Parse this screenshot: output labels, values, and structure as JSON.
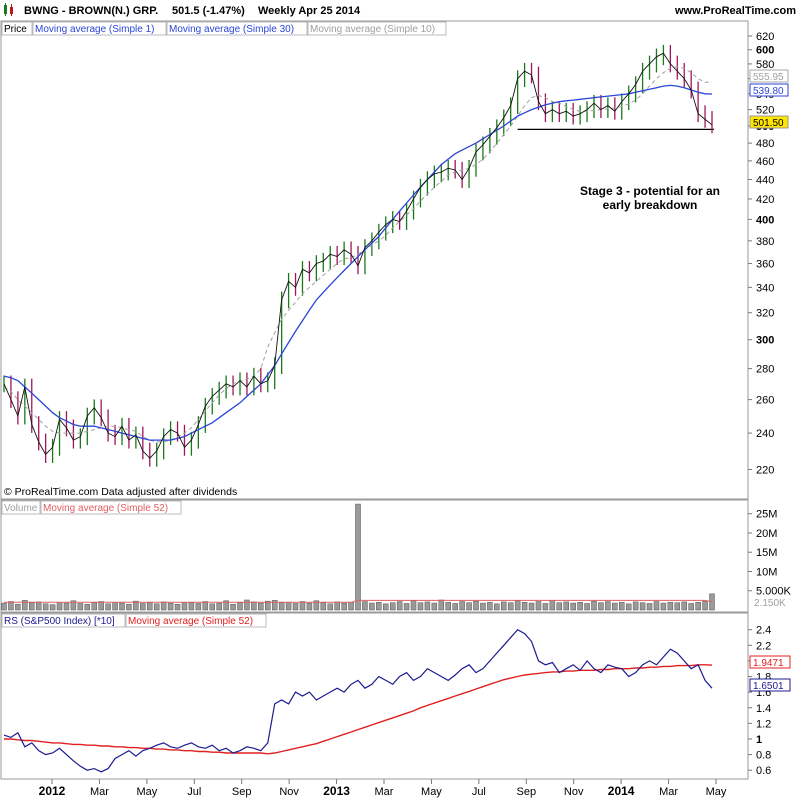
{
  "header": {
    "symbol": "BWNG - BROWN(N.) GRP.",
    "price_change": "501.5 (-1.47%)",
    "period_date": "Weekly  Apr 25 2014",
    "site": "www.ProRealTime.com"
  },
  "price_panel": {
    "legend": [
      "Price",
      "Moving average (Simple 1)",
      "Moving average (Simple 30)",
      "Moving average (Simple 10)"
    ],
    "copyright": "© ProRealTime.com  Data adjusted after dividends",
    "annotation": [
      "Stage 3 - potential for an",
      "early breakdown"
    ],
    "badges": [
      "555.95",
      "539.80",
      "501.50"
    ]
  },
  "volume_panel": {
    "legend": [
      "Volume",
      "Moving average (Simple 52)"
    ],
    "ticks": [
      "25M",
      "20M",
      "15M",
      "10M",
      "5.000K"
    ],
    "badge": "2.150K"
  },
  "rs_panel": {
    "legend": [
      "RS (S&P500 Index) [*10]",
      "Moving average (Simple 52)"
    ],
    "badges": [
      "1.9471",
      "1.6501"
    ]
  },
  "colors": {
    "up_candle": "#1a7a1a",
    "down_candle": "#a0155a",
    "ma30": "#2a46d8",
    "ma10": "#a0a0a0",
    "rs_line": "#1b1b8f",
    "rs_ma": "#e02020",
    "badge_fill": "#ffe600"
  },
  "chart_data": [
    {
      "type": "line",
      "title": "BWNG - BROWN(N.) GRP.",
      "y_scale": "log",
      "ylim": [
        206,
        632
      ],
      "x_ticks": [
        "2012",
        "Mar",
        "May",
        "Jul",
        "Sep",
        "Nov",
        "2013",
        "Mar",
        "May",
        "Jul",
        "Sep",
        "Nov",
        "2014",
        "Mar",
        "May"
      ],
      "y_ticks": [
        220,
        240,
        260,
        280,
        300,
        320,
        340,
        360,
        380,
        400,
        420,
        440,
        460,
        480,
        500,
        520,
        540,
        560,
        580,
        600,
        620
      ],
      "horizontal_line": 496,
      "series": [
        {
          "name": "Moving average (Simple 1)",
          "values": [
            270,
            260,
            250,
            268,
            245,
            235,
            228,
            232,
            248,
            243,
            236,
            238,
            250,
            255,
            249,
            240,
            238,
            244,
            236,
            239,
            230,
            226,
            230,
            238,
            242,
            240,
            232,
            236,
            245,
            256,
            262,
            266,
            270,
            268,
            272,
            268,
            275,
            270,
            272,
            282,
            330,
            345,
            340,
            355,
            352,
            360,
            362,
            368,
            366,
            372,
            368,
            358,
            374,
            380,
            388,
            395,
            400,
            398,
            408,
            420,
            432,
            440,
            446,
            448,
            452,
            450,
            440,
            452,
            470,
            478,
            488,
            498,
            510,
            525,
            560,
            570,
            565,
            530,
            515,
            520,
            515,
            518,
            512,
            515,
            520,
            528,
            520,
            525,
            518,
            530,
            540,
            552,
            570,
            580,
            590,
            595,
            580,
            570,
            560,
            545,
            515,
            508,
            501.5
          ]
        },
        {
          "name": "Moving average (Simple 30)",
          "values": [
            275,
            274,
            272,
            268,
            264,
            260,
            256,
            252,
            249,
            247,
            245,
            244,
            244,
            244,
            243,
            242,
            241,
            240,
            239,
            238,
            237,
            236,
            236,
            236,
            236,
            237,
            238,
            240,
            242,
            244,
            246,
            249,
            252,
            255,
            258,
            262,
            266,
            270,
            276,
            282,
            290,
            298,
            306,
            314,
            322,
            330,
            336,
            342,
            348,
            354,
            360,
            366,
            372,
            378,
            384,
            392,
            400,
            408,
            416,
            424,
            432,
            440,
            448,
            456,
            462,
            468,
            472,
            476,
            480,
            485,
            490,
            495,
            500,
            506,
            512,
            516,
            520,
            523,
            526,
            528,
            530,
            531,
            532,
            533,
            534,
            535,
            536,
            537,
            538,
            539,
            540,
            542,
            544,
            546,
            548,
            550,
            551,
            550,
            548,
            545,
            542,
            540,
            539.8
          ]
        },
        {
          "name": "Moving average (Simple 10)",
          "values": [
            268,
            265,
            260,
            256,
            252,
            248,
            244,
            241,
            240,
            240,
            240,
            240,
            241,
            242,
            243,
            244,
            244,
            243,
            242,
            241,
            238,
            236,
            235,
            235,
            236,
            238,
            240,
            243,
            248,
            253,
            258,
            263,
            267,
            270,
            272,
            273,
            275,
            280,
            295,
            305,
            315,
            322,
            328,
            335,
            340,
            345,
            350,
            355,
            360,
            364,
            365,
            368,
            372,
            376,
            380,
            385,
            392,
            398,
            404,
            410,
            418,
            425,
            432,
            438,
            445,
            448,
            450,
            452,
            456,
            462,
            470,
            480,
            490,
            500,
            512,
            525,
            535,
            538,
            535,
            530,
            528,
            524,
            520,
            518,
            518,
            519,
            520,
            521,
            522,
            524,
            527,
            532,
            540,
            550,
            560,
            568,
            574,
            576,
            574,
            568,
            560,
            555,
            555.95
          ]
        }
      ]
    },
    {
      "type": "bar",
      "title": "Volume",
      "ylim": [
        0,
        27000000
      ],
      "y_ticks": [
        "25M",
        "20M",
        "15M",
        "10M",
        "5.000K"
      ],
      "series": [
        {
          "name": "Volume",
          "values": [
            1800000.0,
            2200000.0,
            1500000.0,
            2500000.0,
            1900000.0,
            2100000.0,
            1600000.0,
            1400000.0,
            2000000.0,
            1800000.0,
            2400000.0,
            1700000.0,
            1500000.0,
            1900000.0,
            2200000.0,
            1600000.0,
            2000000.0,
            1800000.0,
            1500000.0,
            2300000.0,
            1700000.0,
            1900000.0,
            1600000.0,
            2100000.0,
            1800000.0,
            1500000.0,
            2000000.0,
            1900000.0,
            1700000.0,
            2200000.0,
            1600000.0,
            1800000.0,
            2400000.0,
            1500000.0,
            1900000.0,
            2600000.0,
            2100000.0,
            1800000.0,
            2300000.0,
            2500000.0,
            1900000.0,
            2000000.0,
            1700000.0,
            2200000.0,
            1800000.0,
            2400000.0,
            1900000.0,
            1600000.0,
            2100000.0,
            1800000.0,
            2000000.0,
            27500000.0,
            2200000.0,
            1800000.0,
            2000000.0,
            1600000.0,
            1900000.0,
            2200000.0,
            1700000.0,
            2400000.0,
            1900000.0,
            2100000.0,
            1800000.0,
            2600000.0,
            2000000.0,
            1700000.0,
            2200000.0,
            1900000.0,
            2300000.0,
            1800000.0,
            2000000.0,
            1600000.0,
            2100000.0,
            1900000.0,
            2400000.0,
            2000000.0,
            1800000.0,
            2200000.0,
            1700000.0,
            2500000.0,
            1900000.0,
            2100000.0,
            1800000.0,
            2000000.0,
            1700000.0,
            2300000.0,
            1900000.0,
            2200000.0,
            1800000.0,
            2000000.0,
            1600000.0,
            2100000.0,
            1900000.0,
            1700000.0,
            2200000.0,
            1800000.0,
            2000000.0,
            1900000.0,
            2100000.0,
            1700000.0,
            2000000.0,
            2300000.0,
            4200000.0
          ]
        },
        {
          "name": "Moving average (Simple 52)",
          "values": [
            2000000.0,
            2000000.0,
            2000000.0,
            2000000.0,
            2000000.0,
            2000000.0,
            2000000.0,
            2000000.0,
            2000000.0,
            2000000.0,
            2000000.0,
            2000000.0,
            2000000.0,
            2000000.0,
            2000000.0,
            2000000.0,
            2000000.0,
            2000000.0,
            2000000.0,
            2000000.0,
            2000000.0,
            2000000.0,
            2000000.0,
            2000000.0,
            2000000.0,
            2000000.0,
            2000000.0,
            2000000.0,
            2000000.0,
            2000000.0,
            2000000.0,
            2000000.0,
            2000000.0,
            2000000.0,
            2000000.0,
            2000000.0,
            2000000.0,
            2000000.0,
            2000000.0,
            2000000.0,
            2000000.0,
            2000000.0,
            2000000.0,
            2000000.0,
            2000000.0,
            2000000.0,
            2000000.0,
            2000000.0,
            2000000.0,
            2000000.0,
            2000000.0,
            2500000.0,
            2500000.0,
            2500000.0,
            2500000.0,
            2500000.0,
            2500000.0,
            2500000.0,
            2500000.0,
            2500000.0,
            2500000.0,
            2500000.0,
            2500000.0,
            2500000.0,
            2500000.0,
            2500000.0,
            2500000.0,
            2500000.0,
            2500000.0,
            2500000.0,
            2500000.0,
            2500000.0,
            2500000.0,
            2500000.0,
            2500000.0,
            2500000.0,
            2500000.0,
            2500000.0,
            2500000.0,
            2500000.0,
            2500000.0,
            2500000.0,
            2500000.0,
            2500000.0,
            2500000.0,
            2500000.0,
            2500000.0,
            2500000.0,
            2500000.0,
            2500000.0,
            2500000.0,
            2500000.0,
            2500000.0,
            2500000.0,
            2500000.0,
            2500000.0,
            2500000.0,
            2500000.0,
            2500000.0,
            2500000.0,
            2500000.0,
            2500000.0,
            2150000.0
          ]
        }
      ]
    },
    {
      "type": "line",
      "title": "RS (S&P500 Index) [*10]",
      "ylim": [
        0.5,
        2.55
      ],
      "y_ticks": [
        0.6,
        0.8,
        1,
        1.2,
        1.4,
        1.6,
        1.8,
        2,
        2.2,
        2.4
      ],
      "series": [
        {
          "name": "RS (S&P500 Index) [*10]",
          "values": [
            1.05,
            1.02,
            1.08,
            0.9,
            0.95,
            0.85,
            0.8,
            0.82,
            0.88,
            0.8,
            0.72,
            0.65,
            0.6,
            0.62,
            0.58,
            0.62,
            0.75,
            0.8,
            0.85,
            0.78,
            0.85,
            0.88,
            0.92,
            0.95,
            0.9,
            0.88,
            0.92,
            0.95,
            0.9,
            0.88,
            0.92,
            0.85,
            0.88,
            0.82,
            0.85,
            0.9,
            0.88,
            0.85,
            0.95,
            1.45,
            1.5,
            1.45,
            1.6,
            1.55,
            1.6,
            1.5,
            1.55,
            1.6,
            1.65,
            1.6,
            1.7,
            1.75,
            1.65,
            1.7,
            1.8,
            1.75,
            1.7,
            1.8,
            1.85,
            1.75,
            1.8,
            1.9,
            1.85,
            1.8,
            1.75,
            1.82,
            1.9,
            1.95,
            1.85,
            1.9,
            2.0,
            2.1,
            2.2,
            2.3,
            2.4,
            2.35,
            2.25,
            2.0,
            1.95,
            1.98,
            1.85,
            1.9,
            1.95,
            1.88,
            2.0,
            1.9,
            1.85,
            1.95,
            1.92,
            1.9,
            1.8,
            1.85,
            1.95,
            2.0,
            1.95,
            2.05,
            2.15,
            2.1,
            2.0,
            1.9,
            1.95,
            1.75,
            1.65
          ]
        },
        {
          "name": "Moving average (Simple 52)",
          "values": [
            1.0,
            1.0,
            0.99,
            0.98,
            0.98,
            0.97,
            0.96,
            0.95,
            0.95,
            0.94,
            0.93,
            0.93,
            0.92,
            0.92,
            0.91,
            0.91,
            0.9,
            0.9,
            0.89,
            0.89,
            0.88,
            0.88,
            0.87,
            0.87,
            0.86,
            0.86,
            0.85,
            0.85,
            0.84,
            0.84,
            0.83,
            0.83,
            0.82,
            0.82,
            0.82,
            0.82,
            0.82,
            0.82,
            0.81,
            0.82,
            0.84,
            0.86,
            0.88,
            0.9,
            0.92,
            0.94,
            0.97,
            1.0,
            1.03,
            1.06,
            1.09,
            1.12,
            1.15,
            1.18,
            1.21,
            1.24,
            1.27,
            1.3,
            1.33,
            1.36,
            1.4,
            1.43,
            1.46,
            1.49,
            1.52,
            1.55,
            1.58,
            1.61,
            1.64,
            1.67,
            1.7,
            1.73,
            1.76,
            1.78,
            1.8,
            1.82,
            1.83,
            1.84,
            1.85,
            1.86,
            1.86,
            1.87,
            1.87,
            1.88,
            1.88,
            1.88,
            1.89,
            1.89,
            1.9,
            1.9,
            1.9,
            1.91,
            1.91,
            1.92,
            1.92,
            1.93,
            1.93,
            1.94,
            1.94,
            1.94,
            1.95,
            1.95,
            1.9471
          ]
        }
      ]
    }
  ]
}
